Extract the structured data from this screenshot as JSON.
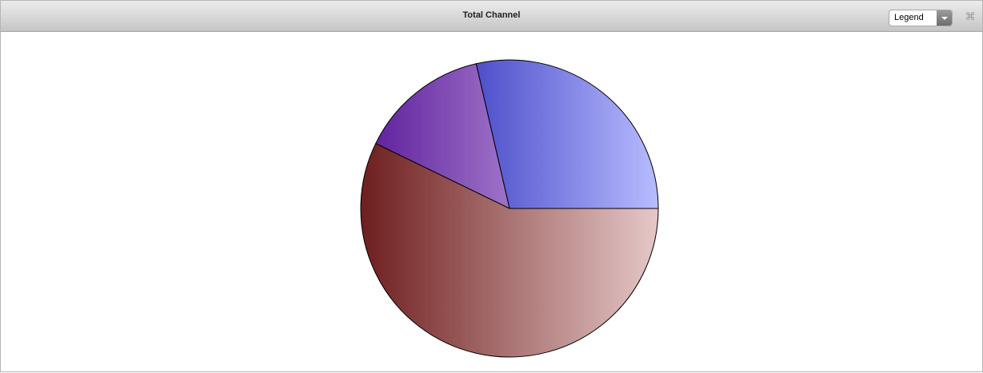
{
  "header": {
    "title": "Total Channel",
    "legend_select": "Legend",
    "expand_icon": "collapse-arrows-icon"
  },
  "chart_data": {
    "type": "pie",
    "title": "Total Channel",
    "values": [
      28.6,
      14.2,
      57.2
    ],
    "start_angle_deg": 0,
    "direction": "counterclockwise",
    "colors": [
      [
        "#0a0aa8",
        "#b8bcff"
      ],
      [
        "#5a1a9a",
        "#e2ccf6"
      ],
      [
        "#6e1e1e",
        "#e6c8c8"
      ]
    ],
    "legend": "hidden"
  }
}
